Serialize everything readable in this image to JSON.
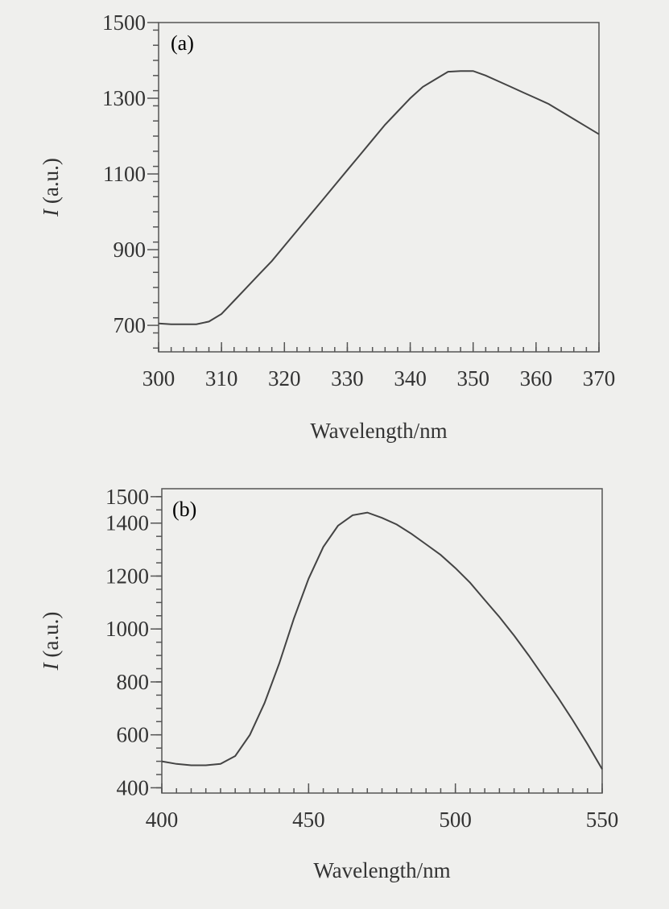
{
  "chart_data": [
    {
      "type": "line",
      "panel_label": "(a)",
      "title": "",
      "xlabel": "Wavelength/nm",
      "ylabel_italic": "I",
      "ylabel_rest": " (a.u.)",
      "xlim": [
        300,
        370
      ],
      "ylim": [
        630,
        1500
      ],
      "xticks": [
        300,
        310,
        320,
        330,
        340,
        350,
        360,
        370
      ],
      "yticks": [
        700,
        900,
        1100,
        1300,
        1500
      ],
      "x_minor_step": 2,
      "y_minor_step": 40,
      "grid": false,
      "series": [
        {
          "x": [
            300,
            302,
            304,
            306,
            308,
            310,
            312,
            314,
            316,
            318,
            320,
            322,
            324,
            326,
            328,
            330,
            332,
            334,
            336,
            338,
            340,
            342,
            344,
            346,
            348,
            350,
            352,
            354,
            356,
            358,
            360,
            362,
            364,
            366,
            368,
            370
          ],
          "values": [
            705,
            703,
            703,
            703,
            710,
            730,
            765,
            800,
            835,
            870,
            910,
            950,
            990,
            1030,
            1070,
            1110,
            1150,
            1190,
            1230,
            1265,
            1300,
            1330,
            1350,
            1370,
            1372,
            1372,
            1360,
            1345,
            1330,
            1315,
            1300,
            1285,
            1265,
            1245,
            1225,
            1205
          ]
        }
      ]
    },
    {
      "type": "line",
      "panel_label": "(b)",
      "title": "",
      "xlabel": "Wavelength/nm",
      "ylabel_italic": "I",
      "ylabel_rest": " (a.u.)",
      "xlim": [
        400,
        550
      ],
      "ylim": [
        380,
        1530
      ],
      "xticks": [
        400,
        450,
        500,
        550
      ],
      "yticks": [
        400,
        600,
        800,
        1000,
        1200,
        1400,
        1500
      ],
      "x_minor_step": 5,
      "y_minor_step": 50,
      "grid": false,
      "series": [
        {
          "x": [
            400,
            405,
            410,
            415,
            420,
            425,
            430,
            435,
            440,
            445,
            450,
            455,
            460,
            465,
            470,
            475,
            480,
            485,
            490,
            495,
            500,
            505,
            510,
            515,
            520,
            525,
            530,
            535,
            540,
            545,
            550
          ],
          "values": [
            500,
            490,
            485,
            485,
            490,
            520,
            600,
            720,
            870,
            1040,
            1190,
            1310,
            1390,
            1430,
            1440,
            1420,
            1395,
            1360,
            1320,
            1280,
            1230,
            1175,
            1110,
            1045,
            975,
            900,
            820,
            740,
            655,
            565,
            470
          ]
        }
      ]
    }
  ]
}
